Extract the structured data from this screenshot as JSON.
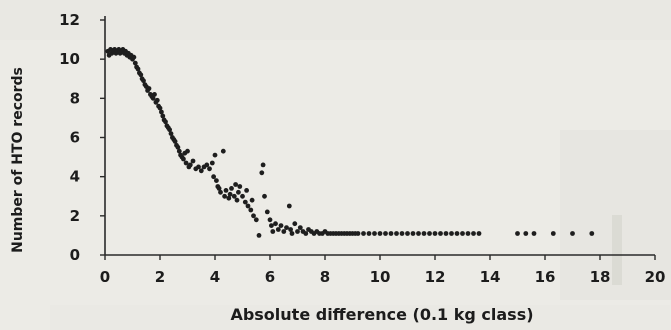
{
  "chart_data": {
    "type": "scatter",
    "title": "",
    "xlabel": "Absolute difference (0.1 kg class)",
    "ylabel": "Number of HTO records",
    "xlim": [
      0,
      20
    ],
    "ylim": [
      0,
      12
    ],
    "x_ticks": [
      "0",
      "2",
      "4",
      "6",
      "8",
      "10",
      "12",
      "14",
      "16",
      "18",
      "20"
    ],
    "y_ticks": [
      "0",
      "2",
      "4",
      "6",
      "8",
      "10",
      "12"
    ],
    "grid": false,
    "legend": "none",
    "marker_color": "#1e1e1e",
    "series": [
      {
        "points": [
          [
            0.1,
            10.4
          ],
          [
            0.15,
            10.2
          ],
          [
            0.2,
            10.5
          ],
          [
            0.25,
            10.3
          ],
          [
            0.3,
            10.4
          ],
          [
            0.35,
            10.5
          ],
          [
            0.4,
            10.3
          ],
          [
            0.45,
            10.4
          ],
          [
            0.5,
            10.5
          ],
          [
            0.55,
            10.3
          ],
          [
            0.6,
            10.4
          ],
          [
            0.65,
            10.5
          ],
          [
            0.7,
            10.3
          ],
          [
            0.75,
            10.4
          ],
          [
            0.8,
            10.2
          ],
          [
            0.85,
            10.3
          ],
          [
            0.9,
            10.1
          ],
          [
            0.95,
            10.2
          ],
          [
            1.0,
            10.0
          ],
          [
            1.05,
            10.1
          ],
          [
            1.1,
            9.8
          ],
          [
            1.15,
            9.6
          ],
          [
            1.2,
            9.5
          ],
          [
            1.25,
            9.3
          ],
          [
            1.3,
            9.2
          ],
          [
            1.35,
            9.0
          ],
          [
            1.4,
            8.9
          ],
          [
            1.45,
            8.7
          ],
          [
            1.5,
            8.6
          ],
          [
            1.55,
            8.4
          ],
          [
            1.6,
            8.5
          ],
          [
            1.65,
            8.2
          ],
          [
            1.7,
            8.1
          ],
          [
            1.75,
            8.0
          ],
          [
            1.8,
            8.2
          ],
          [
            1.85,
            7.8
          ],
          [
            1.9,
            7.9
          ],
          [
            1.95,
            7.6
          ],
          [
            2.0,
            7.5
          ],
          [
            2.05,
            7.3
          ],
          [
            2.1,
            7.1
          ],
          [
            2.15,
            6.9
          ],
          [
            2.2,
            6.8
          ],
          [
            2.25,
            6.6
          ],
          [
            2.3,
            6.5
          ],
          [
            2.35,
            6.4
          ],
          [
            2.4,
            6.2
          ],
          [
            2.45,
            6.0
          ],
          [
            2.5,
            5.9
          ],
          [
            2.55,
            5.8
          ],
          [
            2.6,
            5.6
          ],
          [
            2.65,
            5.5
          ],
          [
            2.7,
            5.3
          ],
          [
            2.75,
            5.1
          ],
          [
            2.8,
            5.0
          ],
          [
            2.85,
            4.9
          ],
          [
            2.9,
            5.2
          ],
          [
            2.95,
            4.7
          ],
          [
            3.0,
            5.3
          ],
          [
            3.05,
            4.5
          ],
          [
            3.1,
            4.6
          ],
          [
            3.2,
            4.8
          ],
          [
            3.3,
            4.4
          ],
          [
            3.4,
            4.5
          ],
          [
            3.5,
            4.3
          ],
          [
            3.6,
            4.5
          ],
          [
            3.7,
            4.6
          ],
          [
            3.8,
            4.4
          ],
          [
            3.9,
            4.7
          ],
          [
            4.0,
            5.1
          ],
          [
            3.95,
            4.0
          ],
          [
            4.05,
            3.8
          ],
          [
            4.1,
            3.5
          ],
          [
            4.15,
            3.4
          ],
          [
            4.2,
            3.2
          ],
          [
            4.3,
            5.3
          ],
          [
            4.35,
            3.0
          ],
          [
            4.4,
            3.3
          ],
          [
            4.5,
            2.9
          ],
          [
            4.55,
            3.1
          ],
          [
            4.6,
            3.4
          ],
          [
            4.7,
            3.0
          ],
          [
            4.75,
            3.6
          ],
          [
            4.8,
            2.8
          ],
          [
            4.85,
            3.2
          ],
          [
            4.9,
            3.5
          ],
          [
            5.0,
            3.0
          ],
          [
            5.1,
            2.7
          ],
          [
            5.15,
            3.3
          ],
          [
            5.2,
            2.5
          ],
          [
            5.3,
            2.3
          ],
          [
            5.35,
            2.8
          ],
          [
            5.4,
            2.0
          ],
          [
            5.5,
            1.8
          ],
          [
            5.6,
            1.0
          ],
          [
            5.7,
            4.2
          ],
          [
            5.75,
            4.6
          ],
          [
            5.8,
            3.0
          ],
          [
            5.9,
            2.2
          ],
          [
            6.0,
            1.8
          ],
          [
            6.05,
            1.5
          ],
          [
            6.1,
            1.2
          ],
          [
            6.2,
            1.6
          ],
          [
            6.3,
            1.3
          ],
          [
            6.4,
            1.5
          ],
          [
            6.5,
            1.2
          ],
          [
            6.6,
            1.4
          ],
          [
            6.7,
            2.5
          ],
          [
            6.75,
            1.3
          ],
          [
            6.8,
            1.1
          ],
          [
            6.9,
            1.6
          ],
          [
            7.0,
            1.2
          ],
          [
            7.1,
            1.4
          ],
          [
            7.2,
            1.2
          ],
          [
            7.3,
            1.1
          ],
          [
            7.4,
            1.3
          ],
          [
            7.5,
            1.2
          ],
          [
            7.6,
            1.1
          ],
          [
            7.7,
            1.2
          ],
          [
            7.8,
            1.1
          ],
          [
            7.9,
            1.1
          ],
          [
            8.0,
            1.2
          ],
          [
            8.1,
            1.1
          ],
          [
            8.2,
            1.1
          ],
          [
            8.3,
            1.1
          ],
          [
            8.4,
            1.1
          ],
          [
            8.5,
            1.1
          ],
          [
            8.6,
            1.1
          ],
          [
            8.7,
            1.1
          ],
          [
            8.8,
            1.1
          ],
          [
            8.9,
            1.1
          ],
          [
            9.0,
            1.1
          ],
          [
            9.1,
            1.1
          ],
          [
            9.2,
            1.1
          ],
          [
            9.4,
            1.1
          ],
          [
            9.6,
            1.1
          ],
          [
            9.8,
            1.1
          ],
          [
            10.0,
            1.1
          ],
          [
            10.2,
            1.1
          ],
          [
            10.4,
            1.1
          ],
          [
            10.6,
            1.1
          ],
          [
            10.8,
            1.1
          ],
          [
            11.0,
            1.1
          ],
          [
            11.2,
            1.1
          ],
          [
            11.4,
            1.1
          ],
          [
            11.6,
            1.1
          ],
          [
            11.8,
            1.1
          ],
          [
            12.0,
            1.1
          ],
          [
            12.2,
            1.1
          ],
          [
            12.4,
            1.1
          ],
          [
            12.6,
            1.1
          ],
          [
            12.8,
            1.1
          ],
          [
            13.0,
            1.1
          ],
          [
            13.2,
            1.1
          ],
          [
            13.4,
            1.1
          ],
          [
            13.6,
            1.1
          ],
          [
            15.0,
            1.1
          ],
          [
            15.3,
            1.1
          ],
          [
            15.6,
            1.1
          ],
          [
            16.3,
            1.1
          ],
          [
            17.0,
            1.1
          ],
          [
            17.7,
            1.1
          ]
        ]
      }
    ]
  }
}
